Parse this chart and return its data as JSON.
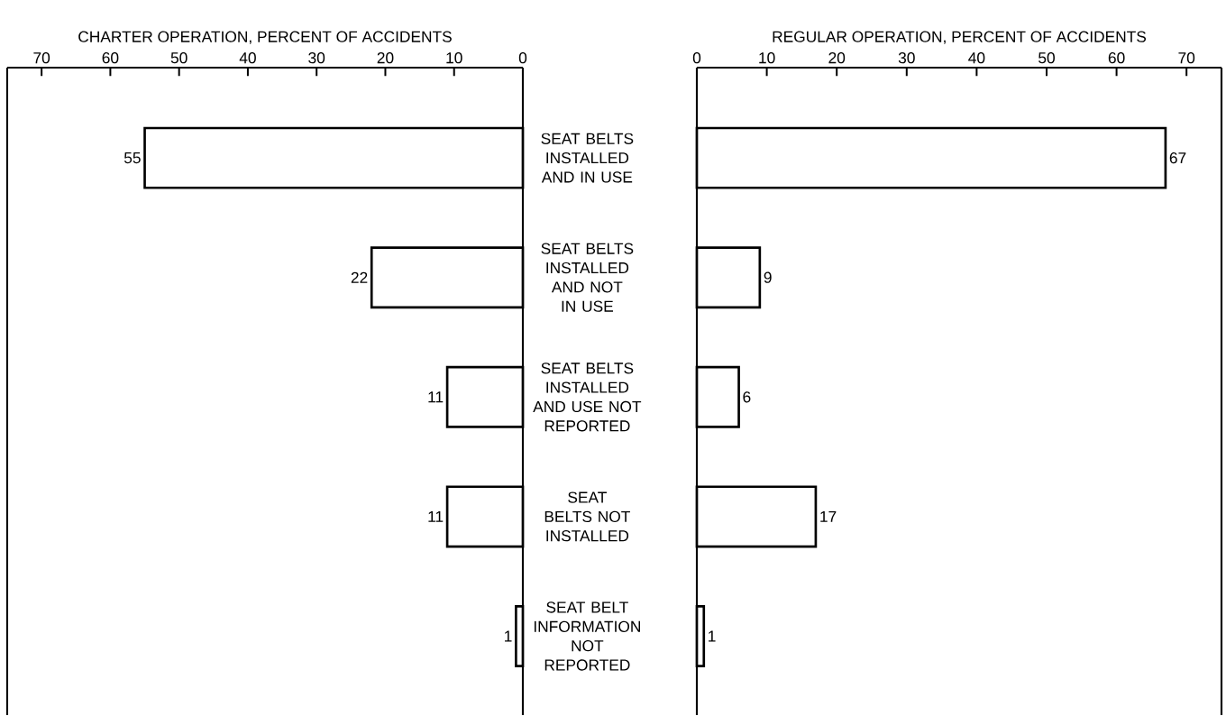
{
  "chart_data": [
    {
      "type": "bar",
      "orientation": "horizontal",
      "xlabel": "CHARTER OPERATION, PERCENT OF ACCIDENTS",
      "categories": [
        "SEAT BELTS INSTALLED AND IN USE",
        "SEAT BELTS INSTALLED AND NOT IN USE",
        "SEAT BELTS INSTALLED AND USE NOT REPORTED",
        "SEAT BELTS NOT INSTALLED",
        "SEAT BELT INFORMATION NOT REPORTED"
      ],
      "values": [
        55,
        22,
        11,
        11,
        1
      ],
      "color": "#ffffff",
      "xlim": [
        75,
        0
      ],
      "xticks": [
        0,
        10,
        20,
        30,
        40,
        50,
        60,
        70
      ],
      "data_labels": true
    },
    {
      "type": "bar",
      "orientation": "horizontal",
      "xlabel": "REGULAR OPERATION, PERCENT OF ACCIDENTS",
      "categories": [
        null,
        null,
        null,
        null,
        null
      ],
      "values": [
        67,
        9,
        6,
        17,
        1
      ],
      "color": "#ffffff",
      "xlim": [
        0,
        75
      ],
      "xticks": [
        0,
        10,
        20,
        30,
        40,
        50,
        60,
        70
      ],
      "data_labels": true
    }
  ]
}
